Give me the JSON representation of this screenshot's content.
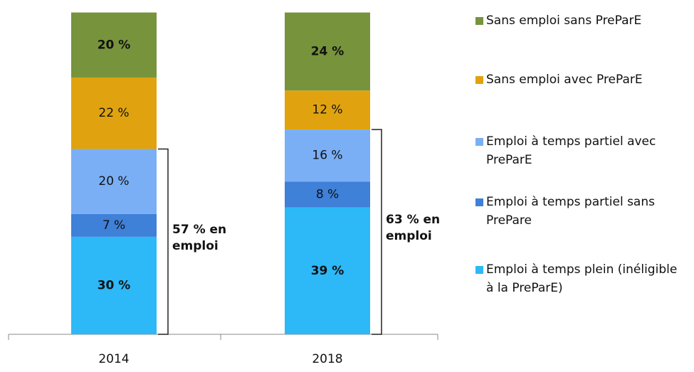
{
  "chart_data": {
    "type": "stacked_bar",
    "categories": [
      "2014",
      "2018"
    ],
    "series": [
      {
        "name": "Emploi à temps plein (inéligible à la PreParE)",
        "color": "#2db8f7",
        "values": [
          30,
          39
        ],
        "value_labels": [
          "30 %",
          "39 %"
        ]
      },
      {
        "name": "Emploi à temps partiel sans PrePare",
        "color": "#3f80d8",
        "values": [
          7,
          8
        ],
        "value_labels": [
          "7 %",
          "8 %"
        ]
      },
      {
        "name": "Emploi à temps partiel avec PreParE",
        "color": "#7aaff5",
        "values": [
          20,
          16
        ],
        "value_labels": [
          "20 %",
          "16 %"
        ]
      },
      {
        "name": "Sans emploi avec PreParE",
        "color": "#e0a30f",
        "values": [
          22,
          12
        ],
        "value_labels": [
          "22 %",
          "12 %"
        ]
      },
      {
        "name": "Sans emploi sans PreParE",
        "color": "#77933c",
        "values": [
          20,
          24
        ],
        "value_labels": [
          "20 %",
          "24 %"
        ]
      }
    ],
    "annotations": [
      "57 % en emploi",
      "63 % en emploi"
    ],
    "ylim": [
      0,
      100
    ],
    "legend": "right"
  }
}
